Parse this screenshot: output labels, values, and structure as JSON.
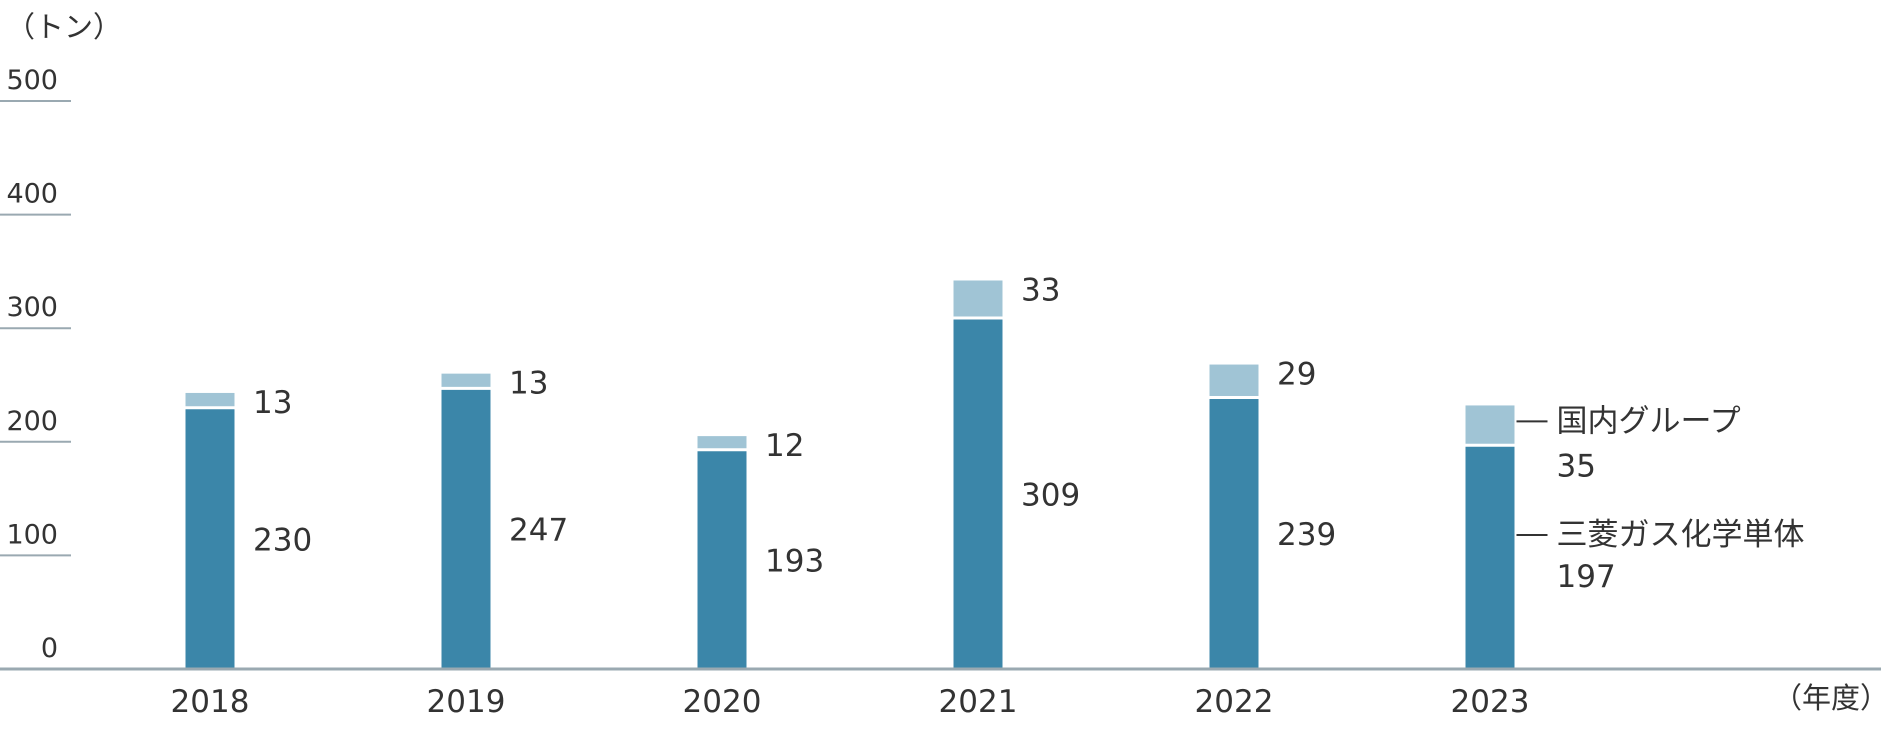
{
  "chart_data": {
    "type": "bar",
    "stacked": true,
    "y_unit_label": "（トン）",
    "x_unit_label": "（年度）",
    "categories": [
      "2018",
      "2019",
      "2020",
      "2021",
      "2022",
      "2023"
    ],
    "series": [
      {
        "name": "三菱ガス化学単体",
        "values": [
          230,
          247,
          193,
          309,
          239,
          197
        ]
      },
      {
        "name": "国内グループ",
        "values": [
          13,
          13,
          12,
          33,
          29,
          35
        ]
      }
    ],
    "ylim": [
      0,
      500
    ],
    "yticks": [
      0,
      100,
      200,
      300,
      400,
      500
    ],
    "legend_placement": "right of last bar",
    "colors": {
      "base": "#3b86a9",
      "top": "#a0c4d5",
      "axis": "#9aa9b1",
      "text": "#333333"
    }
  }
}
